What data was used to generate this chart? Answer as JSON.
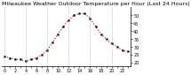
{
  "title": "Milwaukee Weather Outdoor Temperature per Hour (Last 24 Hours)",
  "hours": [
    0,
    1,
    2,
    3,
    4,
    5,
    6,
    7,
    8,
    9,
    10,
    11,
    12,
    13,
    14,
    15,
    16,
    17,
    18,
    19,
    20,
    21,
    22,
    23
  ],
  "temps": [
    24,
    23,
    22,
    22,
    21,
    22,
    23,
    25,
    28,
    33,
    38,
    43,
    47,
    50,
    51,
    51,
    48,
    43,
    38,
    35,
    32,
    30,
    28,
    27
  ],
  "line_color": "#dd0000",
  "marker_color": "#000000",
  "bg_color": "#ffffff",
  "grid_color": "#aaaaaa",
  "title_color": "#000000",
  "ylim": [
    18,
    55
  ],
  "yticks": [
    20,
    25,
    30,
    35,
    40,
    45,
    50
  ],
  "title_fontsize": 4.5,
  "tick_fontsize": 3.5
}
